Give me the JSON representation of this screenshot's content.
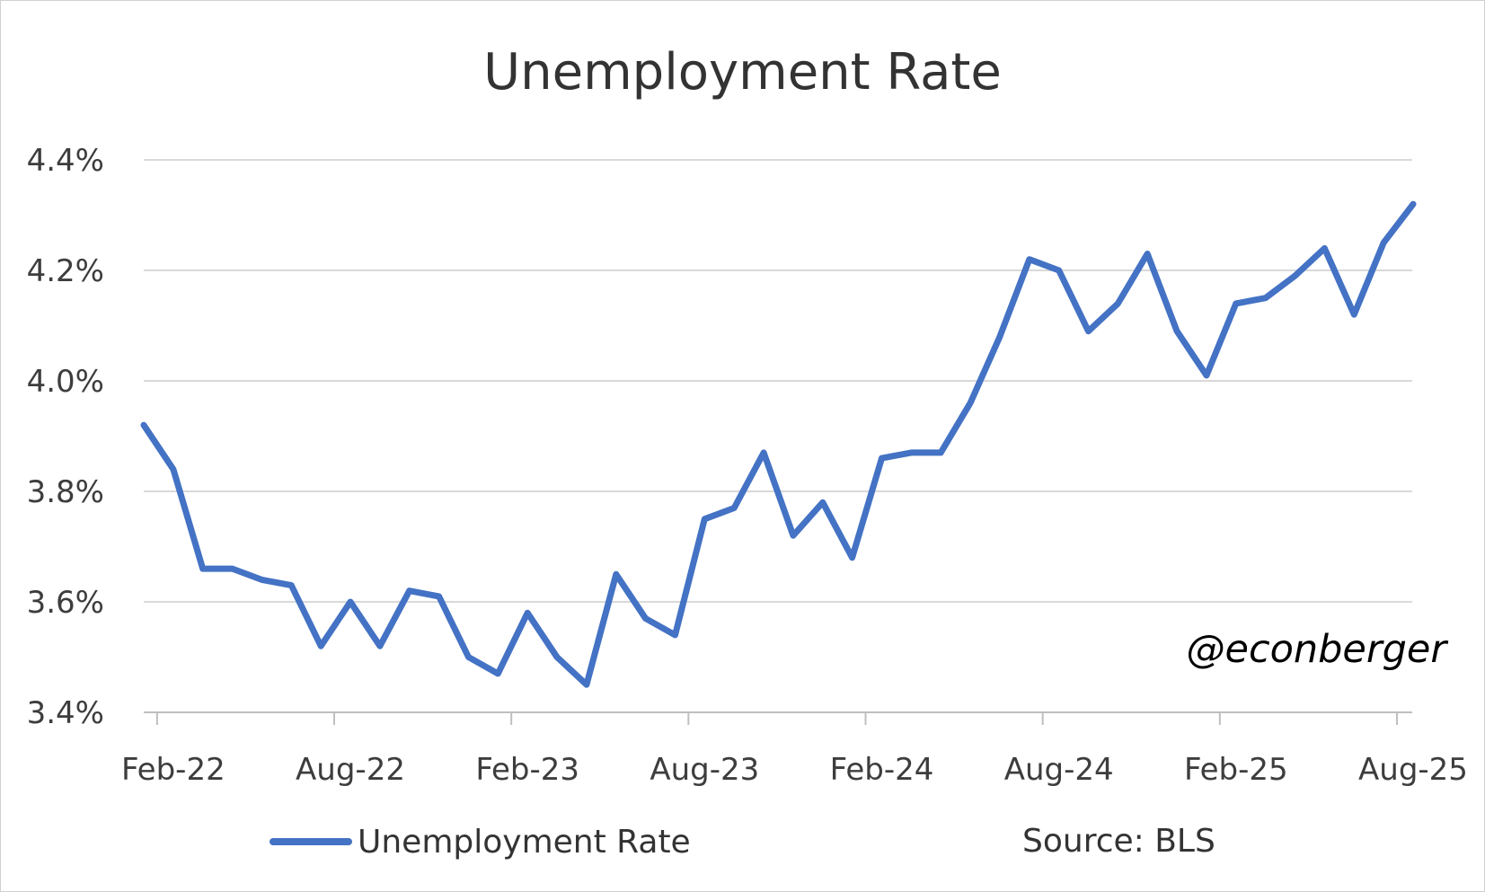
{
  "chart_data": {
    "type": "line",
    "title": "Unemployment Rate",
    "xlabel": "",
    "ylabel": "",
    "ylim": [
      3.4,
      4.4
    ],
    "yticks": [
      "3.4%",
      "3.6%",
      "3.8%",
      "4.0%",
      "4.2%",
      "4.4%"
    ],
    "ytick_values": [
      3.4,
      3.6,
      3.8,
      4.0,
      4.2,
      4.4
    ],
    "xticks": [
      "Feb-22",
      "Aug-22",
      "Feb-23",
      "Aug-23",
      "Feb-24",
      "Aug-24",
      "Feb-25",
      "Aug-25"
    ],
    "x": [
      "Jan-22",
      "Feb-22",
      "Mar-22",
      "Apr-22",
      "May-22",
      "Jun-22",
      "Jul-22",
      "Aug-22",
      "Sep-22",
      "Oct-22",
      "Nov-22",
      "Dec-22",
      "Jan-23",
      "Feb-23",
      "Mar-23",
      "Apr-23",
      "May-23",
      "Jun-23",
      "Jul-23",
      "Aug-23",
      "Sep-23",
      "Oct-23",
      "Nov-23",
      "Dec-23",
      "Jan-24",
      "Feb-24",
      "Mar-24",
      "Apr-24",
      "May-24",
      "Jun-24",
      "Jul-24",
      "Aug-24",
      "Sep-24",
      "Oct-24",
      "Nov-24",
      "Dec-24",
      "Jan-25",
      "Feb-25",
      "Mar-25",
      "Apr-25",
      "May-25",
      "Jun-25",
      "Jul-25",
      "Aug-25"
    ],
    "series": [
      {
        "name": "Unemployment Rate",
        "color": "#4472c4",
        "values": [
          3.92,
          3.84,
          3.66,
          3.66,
          3.64,
          3.63,
          3.52,
          3.6,
          3.52,
          3.62,
          3.61,
          3.5,
          3.47,
          3.58,
          3.5,
          3.45,
          3.65,
          3.57,
          3.54,
          3.75,
          3.77,
          3.87,
          3.72,
          3.78,
          3.68,
          3.86,
          3.87,
          3.87,
          3.96,
          4.08,
          4.22,
          4.2,
          4.09,
          4.14,
          4.23,
          4.09,
          4.01,
          4.14,
          4.15,
          4.19,
          4.24,
          4.12,
          4.25,
          4.32
        ]
      }
    ],
    "grid": true,
    "legend_position": "bottom-left"
  },
  "legend": {
    "label": "Unemployment Rate"
  },
  "source": "Source: BLS",
  "watermark": "@econberger"
}
